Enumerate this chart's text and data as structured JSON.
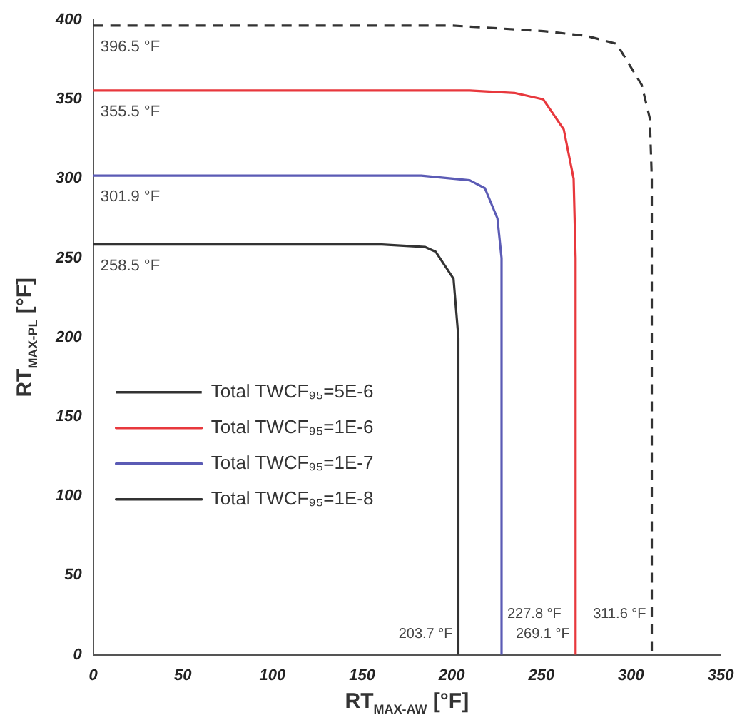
{
  "chart_data": {
    "type": "line",
    "xlabel": "RT$_{MAX-AW}$ [°F]",
    "ylabel": "RT$_{MAX-PL}$ [°F]",
    "xlim": [
      0,
      350
    ],
    "xticks": [
      0,
      50,
      100,
      150,
      200,
      250,
      300,
      350
    ],
    "ylim": [
      0,
      400
    ],
    "yticks": [
      0,
      50,
      100,
      150,
      200,
      250,
      300,
      350,
      400
    ],
    "grid": false,
    "legend": "left",
    "marker": "none",
    "series": [
      {
        "name": "Total TWCF₉₅=5E-6",
        "color": "#333333",
        "line_style": "dashed",
        "x": [
          0,
          200,
          251,
          275,
          292,
          306,
          310.5,
          311.6,
          311.6
        ],
        "values": [
          396.5,
          396.5,
          393,
          390,
          385,
          359,
          338,
          300,
          0
        ]
      },
      {
        "name": "Total TWCF₉₅=1E-6",
        "color": "#e8383d",
        "line_style": "solid",
        "x": [
          0,
          210,
          235,
          251,
          262.5,
          268,
          269.1,
          269.1
        ],
        "values": [
          355.5,
          355.5,
          354,
          350,
          331,
          300,
          250,
          0
        ]
      },
      {
        "name": "Total TWCF₉₅=1E-7",
        "color": "#5b5bb5",
        "line_style": "solid",
        "x": [
          0,
          183,
          210,
          218.5,
          225.5,
          227.8,
          227.8
        ],
        "values": [
          301.9,
          301.9,
          299,
          294,
          275,
          250,
          0
        ]
      },
      {
        "name": "Total TWCF₉₅=1E-8",
        "color": "#333333",
        "line_style": "solid",
        "x": [
          0,
          161,
          185,
          191,
          201,
          203.7,
          203.7
        ],
        "values": [
          258.5,
          258.5,
          257,
          254,
          237,
          200,
          0
        ]
      }
    ],
    "annotations": [
      {
        "text": "396.5 °F",
        "x": 0,
        "y": 396.5
      },
      {
        "text": "355.5 °F",
        "x": 0,
        "y": 355.5
      },
      {
        "text": "301.9 °F",
        "x": 0,
        "y": 301.9
      },
      {
        "text": "258.5 °F",
        "x": 0,
        "y": 258.5
      },
      {
        "text": "203.7 °F",
        "x": 203.7,
        "y": 0
      },
      {
        "text": "227.8 °F",
        "x": 227.8,
        "y": 0
      },
      {
        "text": "269.1 °F",
        "x": 269.1,
        "y": 0
      },
      {
        "text": "311.6 °F",
        "x": 311.6,
        "y": 0
      }
    ]
  }
}
